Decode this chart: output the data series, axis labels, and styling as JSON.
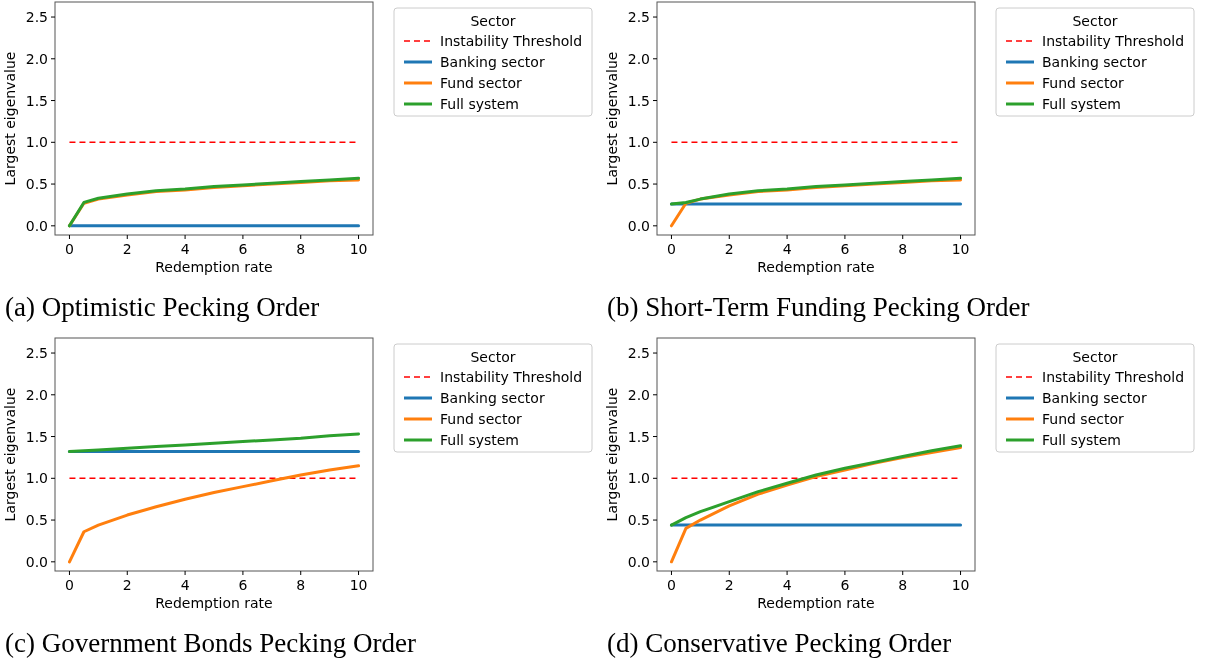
{
  "chart_data": [
    {
      "type": "line",
      "title": "(a) Optimistic Pecking Order",
      "xlabel": "Redemption rate",
      "ylabel": "Largest eigenvalue",
      "legend_title": "Sector",
      "legend": "right",
      "xlim": [
        -0.5,
        10.5
      ],
      "ylim": [
        -0.11,
        2.68
      ],
      "xticks": [
        0,
        2,
        4,
        6,
        8,
        10
      ],
      "yticks": [
        {
          "value": 0,
          "label": "0.0"
        },
        {
          "value": 0.5,
          "label": "0.5"
        },
        {
          "value": 1,
          "label": "1.0"
        },
        {
          "value": 1.5,
          "label": "1.5"
        },
        {
          "value": 2,
          "label": "2.0"
        },
        {
          "value": 2.5,
          "label": "2.5"
        }
      ],
      "x": [
        0,
        0.5,
        1,
        2,
        3,
        4,
        5,
        6,
        7,
        8,
        9,
        10
      ],
      "ref_lines": [
        {
          "axis": "y",
          "value": 1,
          "label": "Instability Threshold",
          "color": "#ff0000",
          "line_style": "dashed"
        }
      ],
      "series": [
        {
          "name": "Banking sector",
          "color": "#1f77b4",
          "values": [
            0,
            0,
            0,
            0,
            0,
            0,
            0,
            0,
            0,
            0,
            0,
            0
          ]
        },
        {
          "name": "Fund sector",
          "color": "#ff7f0e",
          "values": [
            0,
            0.27,
            0.32,
            0.37,
            0.41,
            0.43,
            0.46,
            0.48,
            0.5,
            0.52,
            0.54,
            0.55
          ]
        },
        {
          "name": "Full system",
          "color": "#2ca02c",
          "values": [
            0,
            0.28,
            0.33,
            0.38,
            0.42,
            0.44,
            0.47,
            0.49,
            0.51,
            0.53,
            0.55,
            0.57
          ]
        }
      ]
    },
    {
      "type": "line",
      "title": "(b) Short-Term Funding Pecking Order",
      "xlabel": "Redemption rate",
      "ylabel": "Largest eigenvalue",
      "legend_title": "Sector",
      "legend": "right",
      "xlim": [
        -0.5,
        10.5
      ],
      "ylim": [
        -0.11,
        2.68
      ],
      "xticks": [
        0,
        2,
        4,
        6,
        8,
        10
      ],
      "yticks": [
        {
          "value": 0,
          "label": "0.0"
        },
        {
          "value": 0.5,
          "label": "0.5"
        },
        {
          "value": 1,
          "label": "1.0"
        },
        {
          "value": 1.5,
          "label": "1.5"
        },
        {
          "value": 2,
          "label": "2.0"
        },
        {
          "value": 2.5,
          "label": "2.5"
        }
      ],
      "x": [
        0,
        0.5,
        1,
        2,
        3,
        4,
        5,
        6,
        7,
        8,
        9,
        10
      ],
      "ref_lines": [
        {
          "axis": "y",
          "value": 1,
          "label": "Instability Threshold",
          "color": "#ff0000",
          "line_style": "dashed"
        }
      ],
      "series": [
        {
          "name": "Banking sector",
          "color": "#1f77b4",
          "values": [
            0.26,
            0.26,
            0.26,
            0.26,
            0.26,
            0.26,
            0.26,
            0.26,
            0.26,
            0.26,
            0.26,
            0.26
          ]
        },
        {
          "name": "Fund sector",
          "color": "#ff7f0e",
          "values": [
            0,
            0.27,
            0.32,
            0.37,
            0.41,
            0.43,
            0.46,
            0.48,
            0.5,
            0.52,
            0.54,
            0.55
          ]
        },
        {
          "name": "Full system",
          "color": "#2ca02c",
          "values": [
            0.26,
            0.28,
            0.32,
            0.38,
            0.42,
            0.44,
            0.47,
            0.49,
            0.51,
            0.53,
            0.55,
            0.57
          ]
        }
      ]
    },
    {
      "type": "line",
      "title": "(c) Government Bonds Pecking Order",
      "xlabel": "Redemption rate",
      "ylabel": "Largest eigenvalue",
      "legend_title": "Sector",
      "legend": "right",
      "xlim": [
        -0.5,
        10.5
      ],
      "ylim": [
        -0.11,
        2.68
      ],
      "xticks": [
        0,
        2,
        4,
        6,
        8,
        10
      ],
      "yticks": [
        {
          "value": 0,
          "label": "0.0"
        },
        {
          "value": 0.5,
          "label": "0.5"
        },
        {
          "value": 1,
          "label": "1.0"
        },
        {
          "value": 1.5,
          "label": "1.5"
        },
        {
          "value": 2,
          "label": "2.0"
        },
        {
          "value": 2.5,
          "label": "2.5"
        }
      ],
      "x": [
        0,
        0.5,
        1,
        2,
        3,
        4,
        5,
        6,
        7,
        8,
        9,
        10
      ],
      "ref_lines": [
        {
          "axis": "y",
          "value": 1,
          "label": "Instability Threshold",
          "color": "#ff0000",
          "line_style": "dashed"
        }
      ],
      "series": [
        {
          "name": "Banking sector",
          "color": "#1f77b4",
          "values": [
            1.32,
            1.32,
            1.32,
            1.32,
            1.32,
            1.32,
            1.32,
            1.32,
            1.32,
            1.32,
            1.32,
            1.32
          ]
        },
        {
          "name": "Fund sector",
          "color": "#ff7f0e",
          "values": [
            0,
            0.36,
            0.44,
            0.56,
            0.66,
            0.75,
            0.83,
            0.9,
            0.97,
            1.04,
            1.1,
            1.15
          ]
        },
        {
          "name": "Full system",
          "color": "#2ca02c",
          "values": [
            1.32,
            1.33,
            1.34,
            1.36,
            1.38,
            1.4,
            1.42,
            1.44,
            1.46,
            1.48,
            1.51,
            1.53
          ]
        }
      ]
    },
    {
      "type": "line",
      "title": "(d) Conservative Pecking Order",
      "xlabel": "Redemption rate",
      "ylabel": "Largest eigenvalue",
      "legend_title": "Sector",
      "legend": "right",
      "xlim": [
        -0.5,
        10.5
      ],
      "ylim": [
        -0.11,
        2.68
      ],
      "xticks": [
        0,
        2,
        4,
        6,
        8,
        10
      ],
      "yticks": [
        {
          "value": 0,
          "label": "0.0"
        },
        {
          "value": 0.5,
          "label": "0.5"
        },
        {
          "value": 1,
          "label": "1.0"
        },
        {
          "value": 1.5,
          "label": "1.5"
        },
        {
          "value": 2,
          "label": "2.0"
        },
        {
          "value": 2.5,
          "label": "2.5"
        }
      ],
      "x": [
        0,
        0.5,
        1,
        2,
        3,
        4,
        5,
        6,
        7,
        8,
        9,
        10
      ],
      "ref_lines": [
        {
          "axis": "y",
          "value": 1,
          "label": "Instability Threshold",
          "color": "#ff0000",
          "line_style": "dashed"
        }
      ],
      "series": [
        {
          "name": "Banking sector",
          "color": "#1f77b4",
          "values": [
            0.44,
            0.44,
            0.44,
            0.44,
            0.44,
            0.44,
            0.44,
            0.44,
            0.44,
            0.44,
            0.44,
            0.44
          ]
        },
        {
          "name": "Fund sector",
          "color": "#ff7f0e",
          "values": [
            0,
            0.4,
            0.5,
            0.67,
            0.81,
            0.92,
            1.02,
            1.1,
            1.18,
            1.25,
            1.31,
            1.37
          ]
        },
        {
          "name": "Full system",
          "color": "#2ca02c",
          "values": [
            0.44,
            0.53,
            0.6,
            0.72,
            0.84,
            0.94,
            1.04,
            1.12,
            1.19,
            1.26,
            1.33,
            1.39
          ]
        }
      ]
    }
  ]
}
